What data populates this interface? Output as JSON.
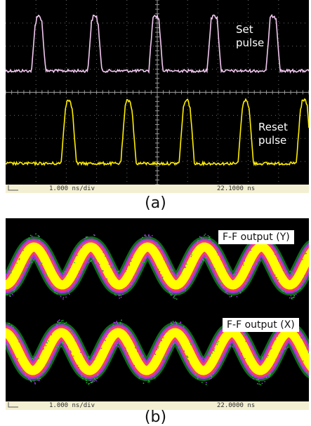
{
  "panel_a": {
    "annotations": {
      "set_line1": "Set",
      "set_line2": "pulse",
      "reset_line1": "Reset",
      "reset_line2": "pulse"
    },
    "status": {
      "time_div": "1.000 ns/div",
      "time_pos": "22.1000 ns"
    },
    "caption": "(a)",
    "colors": {
      "set_trace": "#f2c8f0",
      "reset_trace": "#ffee00",
      "grid": "#9a9a9a"
    }
  },
  "panel_b": {
    "labels": {
      "output_y": "F-F output (Y)",
      "output_x": "F-F output (X)"
    },
    "status": {
      "time_div": "1.000 ns/div",
      "time_pos": "22.0000 ns"
    },
    "caption": "(b)",
    "colors": {
      "eye_core": "#ffff00",
      "eye_mid": "#ff3a6a",
      "eye_outer": "#b030ff",
      "eye_edge": "#18c828"
    }
  }
}
